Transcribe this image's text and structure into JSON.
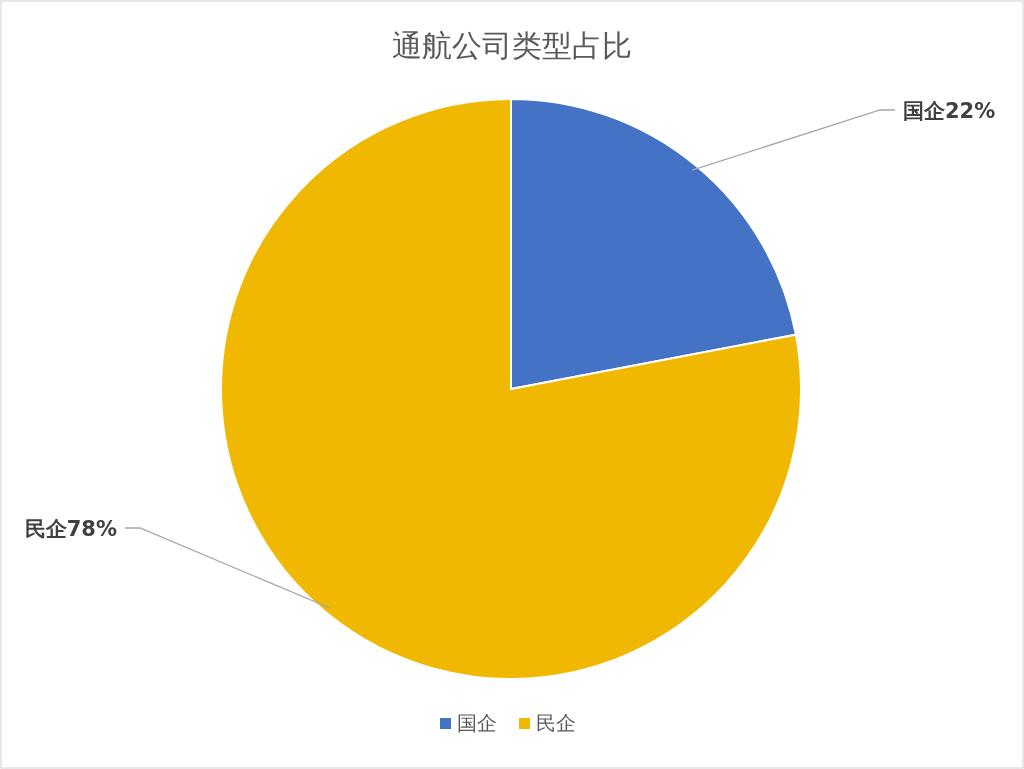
{
  "chart_data": {
    "type": "pie",
    "title": "通航公司类型占比",
    "categories": [
      "国企",
      "民企"
    ],
    "values": [
      22,
      78
    ],
    "value_labels": [
      "22%",
      "78%"
    ],
    "colors": [
      "#4472c4",
      "#f0b800"
    ],
    "legend": "bottom"
  }
}
